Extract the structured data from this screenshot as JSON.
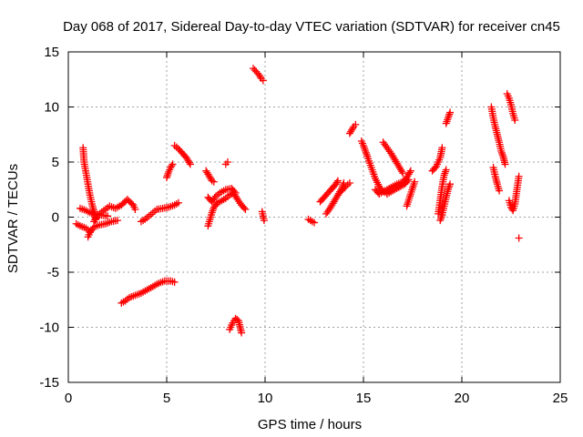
{
  "chart_data": {
    "type": "scatter",
    "title": "Day 068 of 2017, Sidereal Day-to-day VTEC variation (SDTVAR) for receiver cn45",
    "xlabel": "GPS time / hours",
    "ylabel": "SDTVAR / TECUs",
    "xlim": [
      0,
      25
    ],
    "ylim": [
      -15,
      15
    ],
    "xticks": [
      0,
      5,
      10,
      15,
      20,
      25
    ],
    "yticks": [
      -15,
      -10,
      -5,
      0,
      5,
      10,
      15
    ],
    "grid": true,
    "marker": "+",
    "color": "#ff0000",
    "segments": [
      [
        [
          0.4,
          -0.6
        ],
        [
          0.6,
          -0.8
        ],
        [
          0.9,
          -1.0
        ],
        [
          1.1,
          -1.3
        ]
      ],
      [
        [
          0.6,
          0.8
        ],
        [
          0.9,
          0.6
        ],
        [
          1.2,
          0.3
        ],
        [
          1.6,
          0.2
        ],
        [
          2.0,
          0.1
        ]
      ],
      [
        [
          0.75,
          6.3
        ],
        [
          0.8,
          5.0
        ],
        [
          0.9,
          4.0
        ],
        [
          1.0,
          3.0
        ],
        [
          1.1,
          2.0
        ],
        [
          1.2,
          1.2
        ],
        [
          1.3,
          0.5
        ],
        [
          1.4,
          -0.2
        ]
      ],
      [
        [
          1.0,
          -1.8
        ],
        [
          1.1,
          -1.4
        ],
        [
          1.3,
          -0.9
        ],
        [
          1.6,
          -0.7
        ],
        [
          1.9,
          -0.6
        ],
        [
          2.2,
          -0.4
        ],
        [
          2.5,
          -0.3
        ]
      ],
      [
        [
          1.3,
          -0.4
        ],
        [
          1.5,
          0.2
        ],
        [
          1.8,
          0.6
        ],
        [
          2.1,
          1.0
        ],
        [
          2.4,
          0.8
        ],
        [
          2.7,
          1.1
        ],
        [
          3.0,
          1.6
        ],
        [
          3.3,
          1.1
        ],
        [
          3.4,
          0.7
        ]
      ],
      [
        [
          3.7,
          -0.4
        ],
        [
          3.9,
          -0.2
        ],
        [
          4.1,
          0.1
        ],
        [
          4.3,
          0.4
        ],
        [
          4.5,
          0.7
        ],
        [
          4.8,
          0.8
        ],
        [
          5.1,
          0.9
        ],
        [
          5.4,
          1.1
        ],
        [
          5.6,
          1.3
        ]
      ],
      [
        [
          2.7,
          -7.8
        ],
        [
          2.9,
          -7.6
        ],
        [
          3.1,
          -7.3
        ],
        [
          3.4,
          -7.1
        ],
        [
          3.7,
          -6.9
        ],
        [
          4.0,
          -6.6
        ],
        [
          4.3,
          -6.3
        ],
        [
          4.6,
          -6.0
        ],
        [
          4.9,
          -5.8
        ],
        [
          5.2,
          -5.8
        ],
        [
          5.4,
          -5.9
        ]
      ],
      [
        [
          5.0,
          3.6
        ],
        [
          5.1,
          4.1
        ],
        [
          5.2,
          4.5
        ],
        [
          5.3,
          4.8
        ]
      ],
      [
        [
          5.4,
          6.5
        ],
        [
          5.6,
          6.2
        ],
        [
          5.8,
          5.8
        ],
        [
          6.0,
          5.4
        ],
        [
          6.2,
          4.8
        ]
      ],
      [
        [
          7.0,
          4.2
        ],
        [
          7.1,
          3.9
        ],
        [
          7.2,
          3.6
        ],
        [
          7.3,
          3.3
        ],
        [
          7.4,
          3.2
        ]
      ],
      [
        [
          7.1,
          -0.8
        ],
        [
          7.2,
          -0.2
        ],
        [
          7.3,
          0.4
        ],
        [
          7.4,
          0.9
        ],
        [
          7.6,
          1.3
        ],
        [
          7.8,
          1.5
        ],
        [
          8.0,
          1.7
        ],
        [
          8.2,
          2.0
        ],
        [
          8.4,
          2.2
        ],
        [
          8.6,
          1.6
        ],
        [
          8.8,
          1.1
        ],
        [
          9.0,
          0.7
        ]
      ],
      [
        [
          7.1,
          1.8
        ],
        [
          7.3,
          1.4
        ],
        [
          7.5,
          1.9
        ],
        [
          7.7,
          2.2
        ],
        [
          8.0,
          2.5
        ],
        [
          8.3,
          2.6
        ],
        [
          8.5,
          2.2
        ]
      ],
      [
        [
          8.0,
          4.8
        ],
        [
          8.1,
          5.0
        ]
      ],
      [
        [
          8.2,
          -10.2
        ],
        [
          8.35,
          -9.6
        ],
        [
          8.5,
          -9.2
        ],
        [
          8.65,
          -9.4
        ],
        [
          8.8,
          -10.5
        ]
      ],
      [
        [
          9.4,
          13.5
        ],
        [
          9.55,
          13.2
        ],
        [
          9.7,
          12.9
        ],
        [
          9.8,
          12.6
        ],
        [
          9.9,
          12.4
        ]
      ],
      [
        [
          9.85,
          0.5
        ],
        [
          9.9,
          0.1
        ],
        [
          9.95,
          -0.3
        ]
      ],
      [
        [
          12.2,
          -0.2
        ],
        [
          12.3,
          -0.3
        ],
        [
          12.4,
          -0.4
        ],
        [
          12.5,
          -0.5
        ]
      ],
      [
        [
          12.8,
          1.4
        ],
        [
          13.0,
          1.8
        ],
        [
          13.2,
          2.2
        ],
        [
          13.4,
          2.6
        ],
        [
          13.6,
          3.0
        ],
        [
          13.7,
          3.3
        ]
      ],
      [
        [
          13.1,
          0.3
        ],
        [
          13.3,
          0.8
        ],
        [
          13.5,
          1.4
        ],
        [
          13.7,
          2.0
        ],
        [
          13.9,
          2.6
        ],
        [
          14.0,
          3.1
        ]
      ],
      [
        [
          13.9,
          2.4
        ],
        [
          14.1,
          2.8
        ],
        [
          14.3,
          3.1
        ]
      ],
      [
        [
          14.3,
          7.6
        ],
        [
          14.4,
          7.9
        ],
        [
          14.5,
          8.2
        ],
        [
          14.6,
          8.4
        ]
      ],
      [
        [
          14.9,
          6.9
        ],
        [
          15.0,
          6.5
        ],
        [
          15.1,
          6.0
        ],
        [
          15.2,
          5.5
        ],
        [
          15.4,
          4.5
        ],
        [
          15.6,
          3.5
        ],
        [
          15.8,
          2.8
        ],
        [
          16.0,
          2.3
        ],
        [
          16.2,
          2.2
        ]
      ],
      [
        [
          15.6,
          2.5
        ],
        [
          15.8,
          2.1
        ],
        [
          16.1,
          2.4
        ],
        [
          16.4,
          2.7
        ],
        [
          16.7,
          3.0
        ],
        [
          17.0,
          3.2
        ],
        [
          17.2,
          3.6
        ],
        [
          17.4,
          4.2
        ]
      ],
      [
        [
          16.0,
          6.8
        ],
        [
          16.2,
          6.3
        ],
        [
          16.4,
          5.8
        ],
        [
          16.6,
          5.2
        ],
        [
          16.8,
          4.6
        ],
        [
          17.0,
          4.0
        ]
      ],
      [
        [
          16.2,
          2.1
        ],
        [
          16.5,
          2.4
        ],
        [
          16.8,
          2.7
        ],
        [
          17.1,
          3.0
        ],
        [
          17.3,
          3.4
        ]
      ],
      [
        [
          17.2,
          1.0
        ],
        [
          17.6,
          3.2
        ]
      ],
      [
        [
          18.5,
          4.2
        ],
        [
          18.7,
          4.6
        ],
        [
          18.9,
          5.4
        ],
        [
          19.0,
          6.3
        ]
      ],
      [
        [
          18.8,
          0.3
        ],
        [
          18.9,
          1.5
        ],
        [
          19.0,
          2.8
        ],
        [
          19.1,
          3.8
        ],
        [
          19.2,
          4.3
        ]
      ],
      [
        [
          18.9,
          -0.3
        ],
        [
          19.0,
          0.2
        ],
        [
          19.1,
          1.0
        ],
        [
          19.2,
          1.8
        ],
        [
          19.3,
          2.5
        ],
        [
          19.4,
          3.0
        ]
      ],
      [
        [
          19.2,
          8.5
        ],
        [
          19.3,
          9.0
        ],
        [
          19.4,
          9.5
        ]
      ],
      [
        [
          21.5,
          10.0
        ],
        [
          21.6,
          9.0
        ],
        [
          21.7,
          8.2
        ],
        [
          21.8,
          7.5
        ],
        [
          21.9,
          6.8
        ],
        [
          22.0,
          6.0
        ],
        [
          22.1,
          5.5
        ],
        [
          22.2,
          4.8
        ]
      ],
      [
        [
          21.6,
          4.5
        ],
        [
          21.7,
          3.7
        ],
        [
          21.8,
          3.0
        ],
        [
          21.9,
          2.4
        ]
      ],
      [
        [
          22.3,
          11.2
        ],
        [
          22.4,
          10.8
        ],
        [
          22.5,
          10.2
        ],
        [
          22.6,
          9.4
        ],
        [
          22.7,
          8.8
        ]
      ],
      [
        [
          22.4,
          1.5
        ],
        [
          22.5,
          0.9
        ],
        [
          22.6,
          0.6
        ],
        [
          22.7,
          1.2
        ],
        [
          22.8,
          2.5
        ],
        [
          22.9,
          3.7
        ]
      ],
      [
        [
          22.9,
          -1.9
        ]
      ]
    ]
  }
}
